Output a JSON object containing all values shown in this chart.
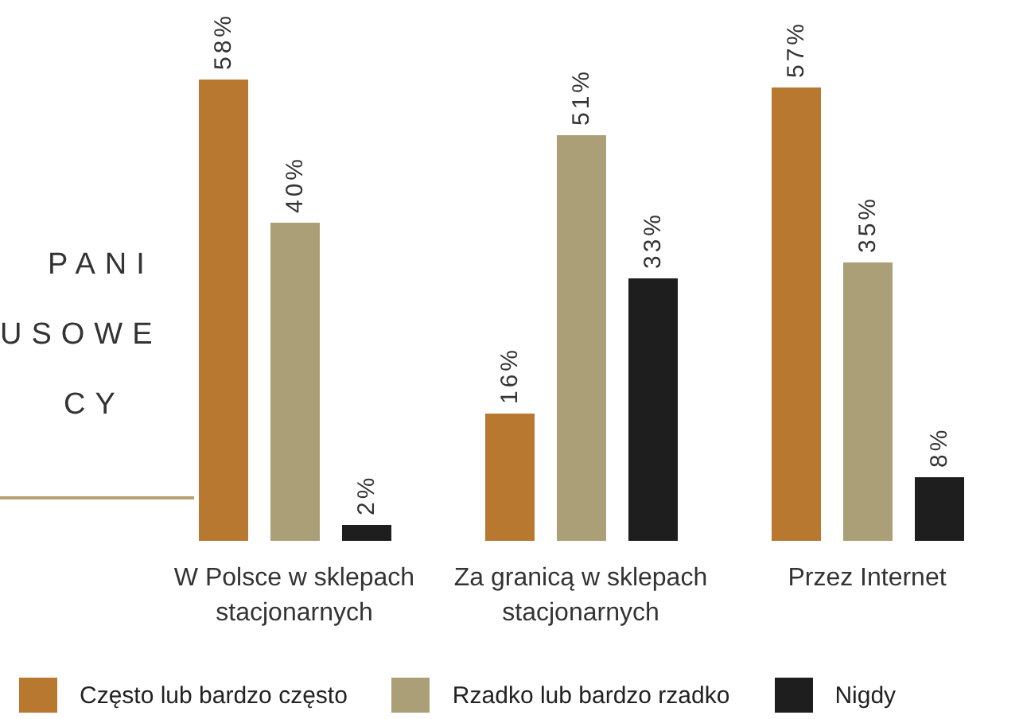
{
  "chart_data": {
    "type": "bar",
    "categories": [
      "W Polsce w sklepach stacjonarnych",
      "Za granicą w sklepach stacjonarnych",
      "Przez Internet"
    ],
    "series": [
      {
        "name": "Często lub bardzo często",
        "color": "#b87830",
        "values": [
          58,
          16,
          57
        ],
        "value_labels": [
          "58%",
          "16%",
          "57%"
        ]
      },
      {
        "name": "Rzadko lub bardzo rzadko",
        "color": "#ab9f78",
        "values": [
          40,
          51,
          35
        ],
        "value_labels": [
          "40%",
          "51%",
          "35%"
        ]
      },
      {
        "name": "Nigdy",
        "color": "#1e1e1e",
        "values": [
          2,
          33,
          8
        ],
        "value_labels": [
          "2%",
          "33%",
          "8%"
        ]
      }
    ],
    "annotations": [
      "PANI",
      "USOWE",
      "CY"
    ],
    "legend": "bottom",
    "grid": false,
    "tick_labels": "x"
  }
}
